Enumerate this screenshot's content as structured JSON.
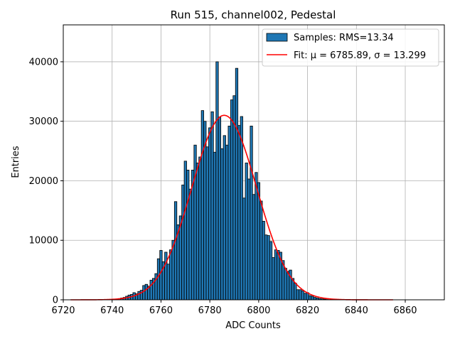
{
  "chart_data": {
    "type": "bar",
    "title": "Run 515, channel002, Pedestal",
    "xlabel": "ADC Counts",
    "ylabel": "Entries",
    "xlim": [
      6720,
      6876
    ],
    "ylim": [
      0,
      46200
    ],
    "xticks": [
      6720,
      6740,
      6760,
      6780,
      6800,
      6820,
      6840,
      6860
    ],
    "yticks": [
      0,
      10000,
      20000,
      30000,
      40000
    ],
    "grid": true,
    "legend_position": "top-right",
    "bar_color": "#1f77b4",
    "fit_color": "#ff0000",
    "histogram": {
      "name": "Samples: RMS=13.34",
      "bin_width": 1,
      "bins": [
        6743,
        6744,
        6745,
        6746,
        6747,
        6748,
        6749,
        6750,
        6751,
        6752,
        6753,
        6754,
        6755,
        6756,
        6757,
        6758,
        6759,
        6760,
        6761,
        6762,
        6763,
        6764,
        6765,
        6766,
        6767,
        6768,
        6769,
        6770,
        6771,
        6772,
        6773,
        6774,
        6775,
        6776,
        6777,
        6778,
        6779,
        6780,
        6781,
        6782,
        6783,
        6784,
        6785,
        6786,
        6787,
        6788,
        6789,
        6790,
        6791,
        6792,
        6793,
        6794,
        6795,
        6796,
        6797,
        6798,
        6799,
        6800,
        6801,
        6802,
        6803,
        6804,
        6805,
        6806,
        6807,
        6808,
        6809,
        6810,
        6811,
        6812,
        6813,
        6814,
        6815,
        6816,
        6817,
        6818,
        6819,
        6820,
        6821,
        6822,
        6823,
        6824,
        6825,
        6826,
        6827,
        6828
      ],
      "values": [
        200,
        300,
        400,
        600,
        800,
        900,
        1200,
        1000,
        1400,
        1600,
        2400,
        2600,
        2300,
        3300,
        3600,
        4400,
        6900,
        8300,
        6400,
        8000,
        6000,
        8400,
        10000,
        16500,
        12600,
        14100,
        19300,
        23300,
        21800,
        18600,
        21800,
        26000,
        23000,
        24000,
        31800,
        30000,
        25700,
        28900,
        31600,
        24800,
        40000,
        30700,
        25400,
        27600,
        26000,
        29200,
        33600,
        34300,
        38900,
        29300,
        30800,
        17100,
        23000,
        20300,
        29200,
        17700,
        21400,
        19700,
        16600,
        13200,
        10900,
        10800,
        9800,
        7100,
        8400,
        8300,
        8000,
        6600,
        5300,
        4800,
        5000,
        3600,
        2800,
        1700,
        1700,
        1500,
        1100,
        1200,
        700,
        600,
        400,
        300,
        200,
        150,
        100,
        50
      ]
    },
    "fit": {
      "name": "Fit: μ = 6785.89, σ = 13.299",
      "mu": 6785.89,
      "sigma": 13.299,
      "amplitude": 31000,
      "x_range": [
        6723,
        6855
      ]
    }
  }
}
